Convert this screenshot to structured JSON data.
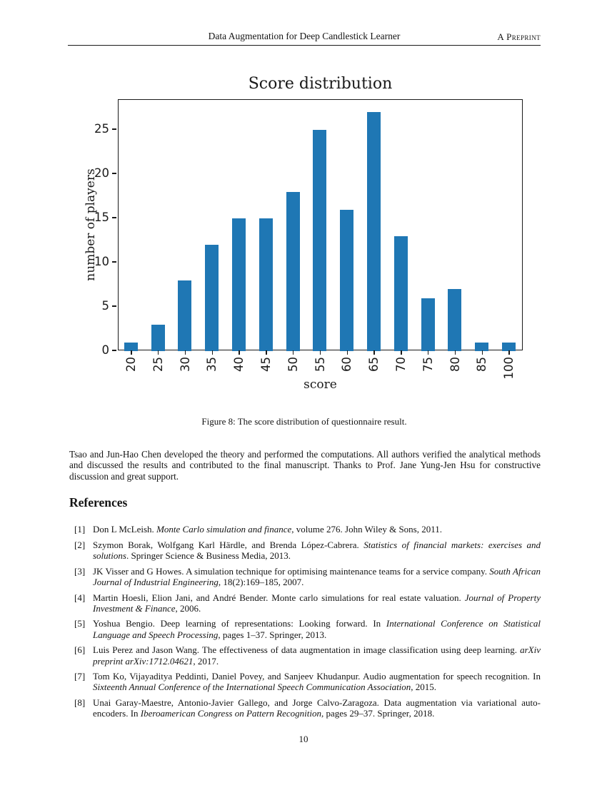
{
  "header": {
    "running_title": "Data Augmentation for Deep Candlestick Learner",
    "preprint_label": "A Preprint"
  },
  "chart_data": {
    "type": "bar",
    "title": "Score distribution",
    "xlabel": "score",
    "ylabel": "number of players",
    "categories": [
      "20",
      "25",
      "30",
      "35",
      "40",
      "45",
      "50",
      "55",
      "60",
      "65",
      "70",
      "75",
      "80",
      "85",
      "100"
    ],
    "values": [
      1,
      3,
      8,
      12,
      15,
      15,
      18,
      25,
      16,
      27,
      13,
      6,
      7,
      1,
      1
    ],
    "yticks": [
      0,
      5,
      10,
      15,
      20,
      25
    ],
    "ylim": [
      0,
      28.4
    ],
    "bar_color": "#1f77b4",
    "grid": false,
    "legend_position": "none",
    "xtick_rotation": 90
  },
  "figure": {
    "caption": "Figure 8: The score distribution of questionnaire result."
  },
  "body": {
    "paragraph": "Tsao and Jun-Hao Chen developed the theory and performed the computations.  All authors verified the analytical methods and discussed the results and contributed to the final manuscript.  Thanks to Prof.  Jane Yung-Jen Hsu for constructive discussion and great support."
  },
  "references": {
    "heading": "References",
    "items": [
      {
        "label": "[1]",
        "parts": [
          {
            "text": "Don L McLeish. ",
            "italic": false
          },
          {
            "text": "Monte Carlo simulation and finance",
            "italic": true
          },
          {
            "text": ", volume 276. John Wiley & Sons, 2011.",
            "italic": false
          }
        ]
      },
      {
        "label": "[2]",
        "parts": [
          {
            "text": "Szymon Borak, Wolfgang Karl Härdle, and Brenda López-Cabrera. ",
            "italic": false
          },
          {
            "text": "Statistics of financial markets: exercises and solutions",
            "italic": true
          },
          {
            "text": ". Springer Science & Business Media, 2013.",
            "italic": false
          }
        ]
      },
      {
        "label": "[3]",
        "parts": [
          {
            "text": "JK Visser and G Howes. A simulation technique for optimising maintenance teams for a service company. ",
            "italic": false
          },
          {
            "text": "South African Journal of Industrial Engineering",
            "italic": true
          },
          {
            "text": ", 18(2):169–185, 2007.",
            "italic": false
          }
        ]
      },
      {
        "label": "[4]",
        "parts": [
          {
            "text": "Martin Hoesli, Elion Jani, and André Bender. Monte carlo simulations for real estate valuation. ",
            "italic": false
          },
          {
            "text": "Journal of Property Investment & Finance",
            "italic": true
          },
          {
            "text": ", 2006.",
            "italic": false
          }
        ]
      },
      {
        "label": "[5]",
        "parts": [
          {
            "text": "Yoshua Bengio. Deep learning of representations: Looking forward. In ",
            "italic": false
          },
          {
            "text": "International Conference on Statistical Language and Speech Processing",
            "italic": true
          },
          {
            "text": ", pages 1–37. Springer, 2013.",
            "italic": false
          }
        ]
      },
      {
        "label": "[6]",
        "parts": [
          {
            "text": "Luis Perez and Jason Wang. The effectiveness of data augmentation in image classification using deep learning. ",
            "italic": false
          },
          {
            "text": "arXiv preprint arXiv:1712.04621",
            "italic": true
          },
          {
            "text": ", 2017.",
            "italic": false
          }
        ]
      },
      {
        "label": "[7]",
        "parts": [
          {
            "text": "Tom Ko, Vijayaditya Peddinti, Daniel Povey, and Sanjeev Khudanpur. Audio augmentation for speech recognition. In ",
            "italic": false
          },
          {
            "text": "Sixteenth Annual Conference of the International Speech Communication Association",
            "italic": true
          },
          {
            "text": ", 2015.",
            "italic": false
          }
        ]
      },
      {
        "label": "[8]",
        "parts": [
          {
            "text": "Unai Garay-Maestre, Antonio-Javier Gallego, and Jorge Calvo-Zaragoza. Data augmentation via variational auto-encoders. In ",
            "italic": false
          },
          {
            "text": "Iberoamerican Congress on Pattern Recognition",
            "italic": true
          },
          {
            "text": ", pages 29–37. Springer, 2018.",
            "italic": false
          }
        ]
      }
    ]
  },
  "footer": {
    "page_number": "10"
  }
}
